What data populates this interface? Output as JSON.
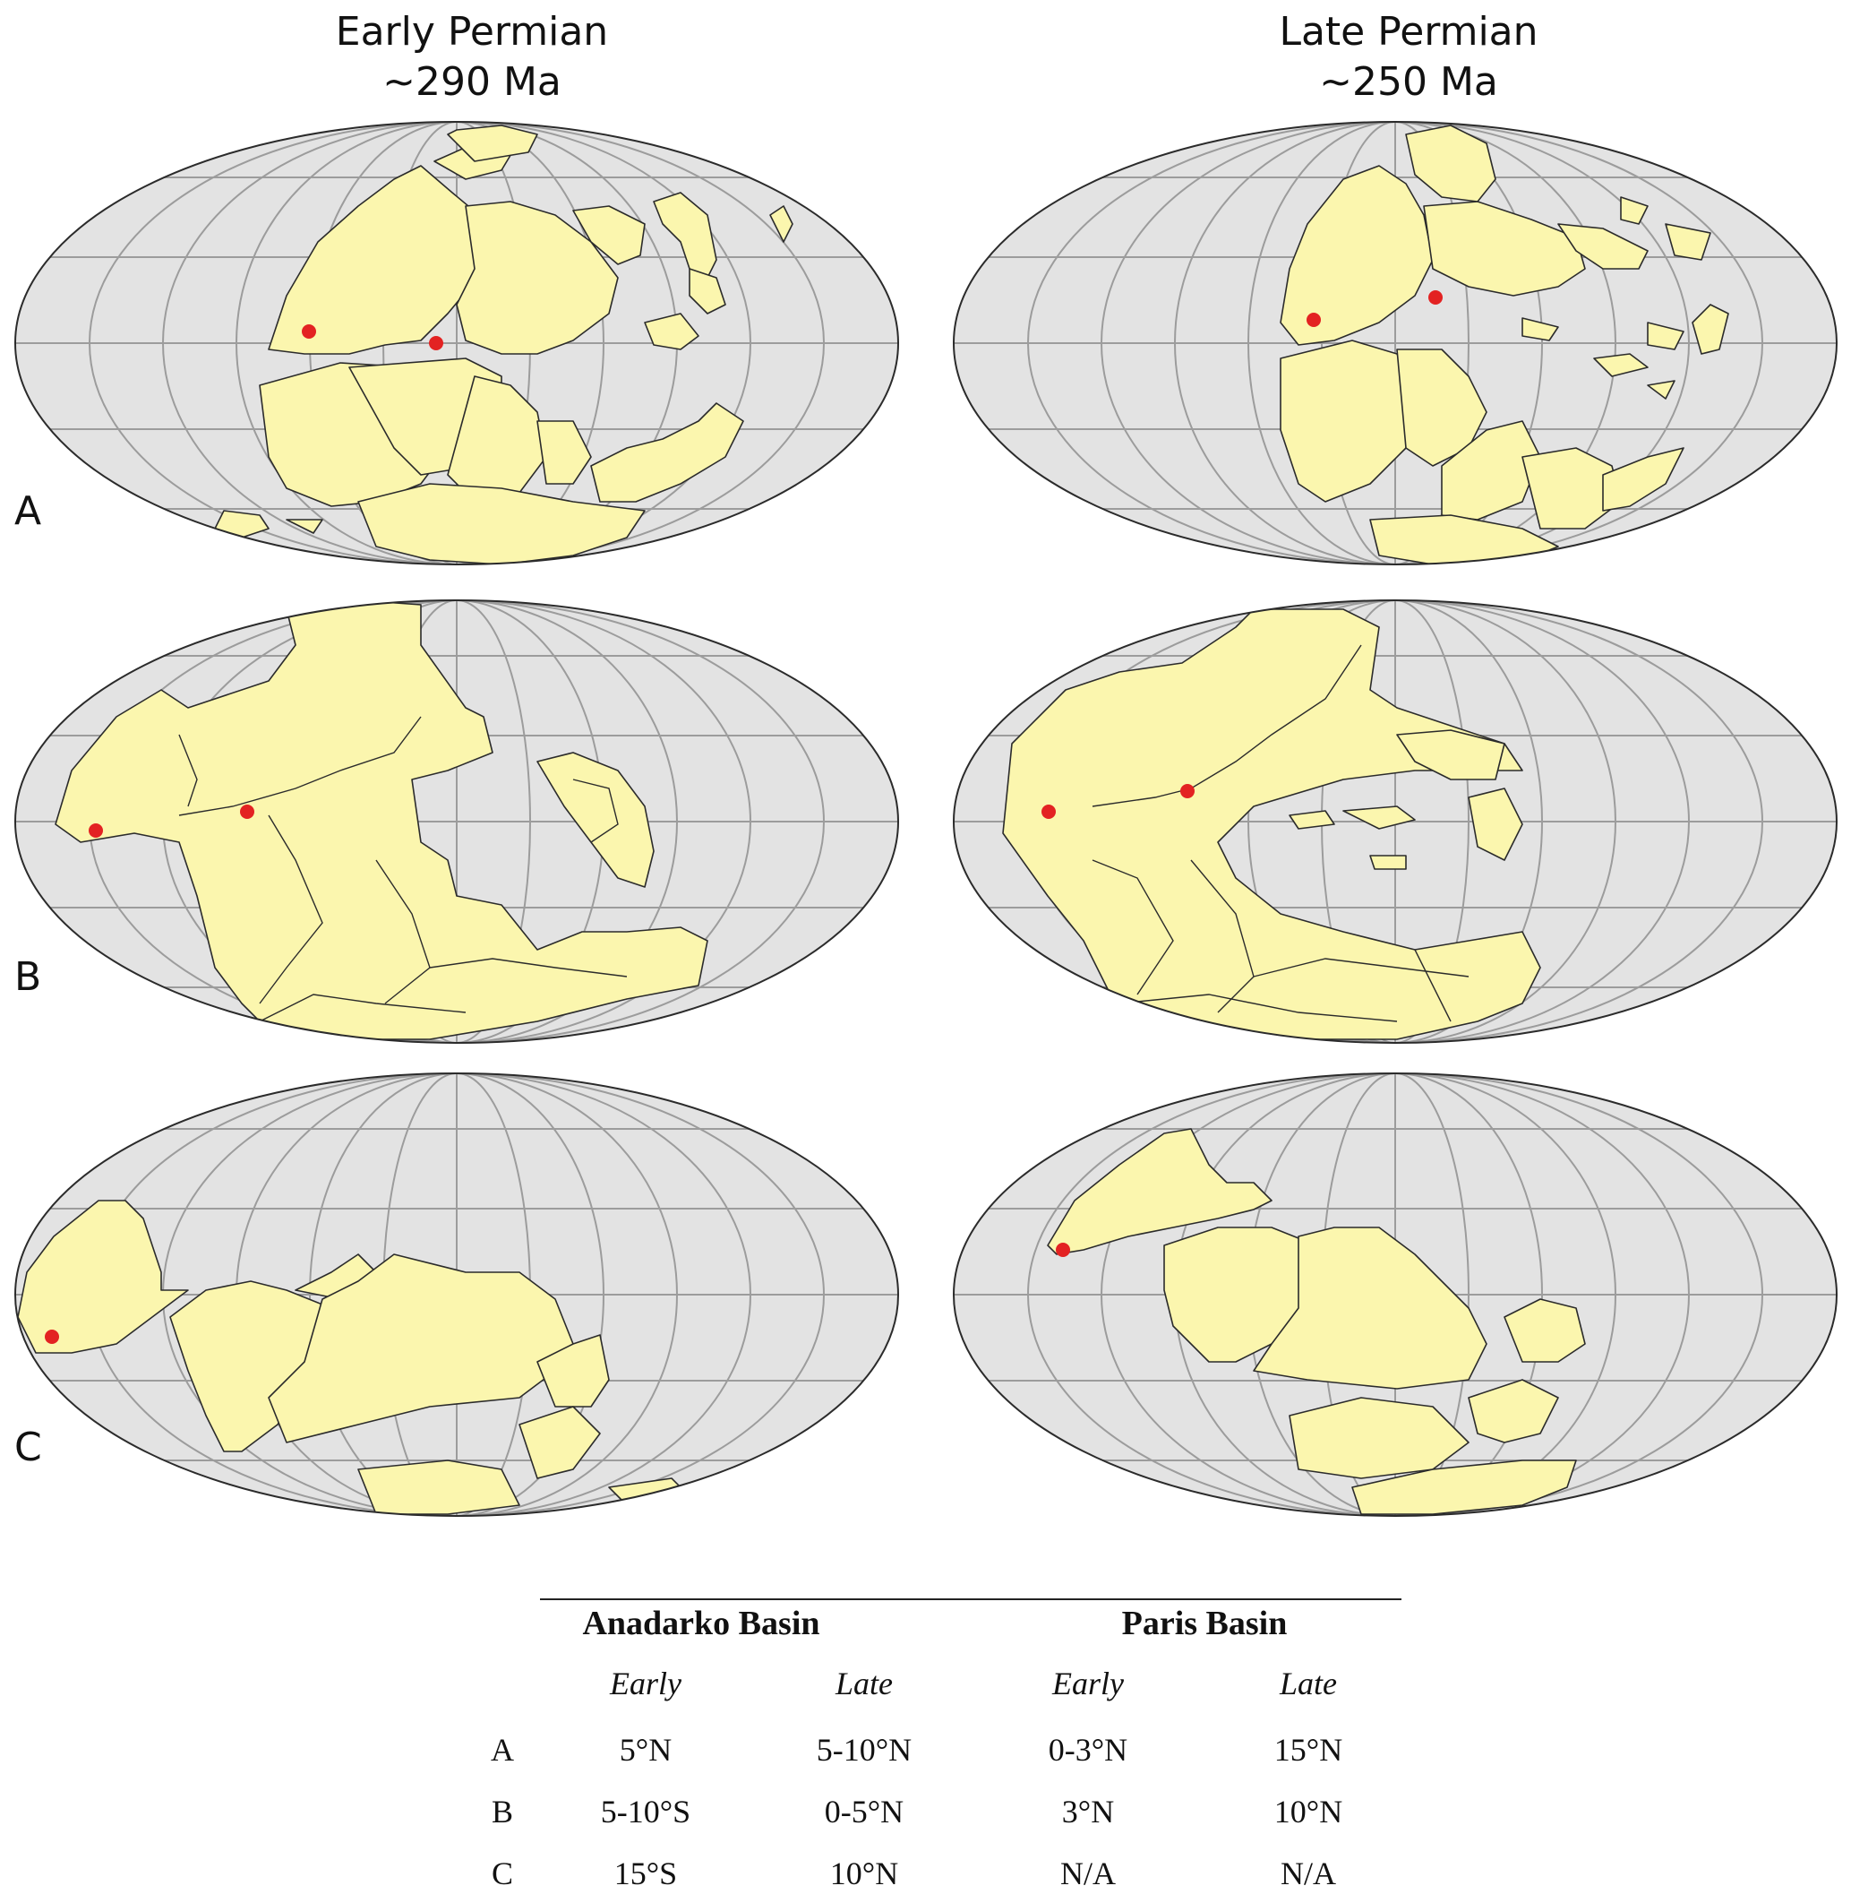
{
  "columns": [
    {
      "title": "Early Permian",
      "subtitle": "~290 Ma"
    },
    {
      "title": "Late Permian",
      "subtitle": "~250 Ma"
    }
  ],
  "rows": [
    "A",
    "B",
    "C"
  ],
  "colors": {
    "ocean": "#e3e3e3",
    "land": "#fbf6ae",
    "land_halo": "#fbf6ae",
    "outline": "#2b2b2b",
    "graticule": "#9c9c9c",
    "site": "#e32222"
  },
  "table": {
    "basins": [
      "Anadarko Basin",
      "Paris Basin"
    ],
    "periods": [
      "Early",
      "Late",
      "Early",
      "Late"
    ],
    "rows": [
      {
        "label": "A",
        "values": [
          "5°N",
          "5-10°N",
          "0-3°N",
          "15°N"
        ]
      },
      {
        "label": "B",
        "values": [
          "5-10°S",
          "0-5°N",
          "3°N",
          "10°N"
        ]
      },
      {
        "label": "C",
        "values": [
          "15°S",
          "10°N",
          "N/A",
          "N/A"
        ]
      }
    ]
  }
}
